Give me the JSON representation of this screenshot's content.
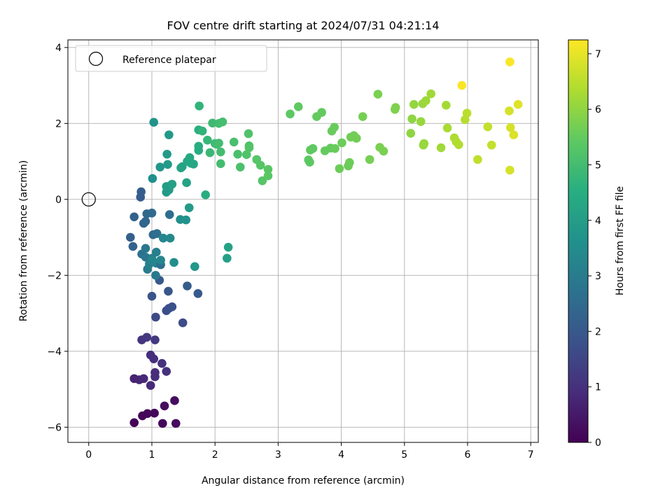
{
  "chart_data": {
    "type": "scatter",
    "title": "FOV centre drift starting at 2024/07/31 04:21:14",
    "xlabel": "Angular distance from reference (arcmin)",
    "ylabel": "Rotation from reference (arcmin)",
    "xlim": [
      -0.33,
      7.12
    ],
    "ylim": [
      -6.4,
      4.2
    ],
    "xticks": [
      0,
      1,
      2,
      3,
      4,
      5,
      6,
      7
    ],
    "yticks": [
      -6,
      -4,
      -2,
      0,
      2,
      4
    ],
    "grid": true,
    "legend": {
      "placement": "top-left",
      "entries": [
        "Reference platepar"
      ]
    },
    "reference_point": {
      "x": 0,
      "y": 0
    },
    "colorbar": {
      "label": "Hours from first FF file",
      "range": [
        0,
        7.25
      ],
      "ticks": [
        0,
        1,
        2,
        3,
        4,
        5,
        6,
        7
      ],
      "colormap": "viridis"
    },
    "points": [
      {
        "x": 0.72,
        "y": -5.88,
        "c": 0.05
      },
      {
        "x": 0.85,
        "y": -5.7,
        "c": 0.1
      },
      {
        "x": 0.93,
        "y": -5.64,
        "c": 0.1
      },
      {
        "x": 1.04,
        "y": -5.63,
        "c": 0.15
      },
      {
        "x": 1.17,
        "y": -5.9,
        "c": 0.15
      },
      {
        "x": 1.38,
        "y": -5.9,
        "c": 0.2
      },
      {
        "x": 1.2,
        "y": -5.44,
        "c": 0.2
      },
      {
        "x": 1.36,
        "y": -5.3,
        "c": 0.25
      },
      {
        "x": 0.72,
        "y": -4.72,
        "c": 0.7
      },
      {
        "x": 0.8,
        "y": -4.75,
        "c": 0.75
      },
      {
        "x": 0.87,
        "y": -4.72,
        "c": 0.8
      },
      {
        "x": 0.98,
        "y": -4.9,
        "c": 0.85
      },
      {
        "x": 1.05,
        "y": -4.67,
        "c": 0.9
      },
      {
        "x": 1.05,
        "y": -4.56,
        "c": 0.9
      },
      {
        "x": 0.98,
        "y": -4.1,
        "c": 0.95
      },
      {
        "x": 1.03,
        "y": -4.2,
        "c": 0.95
      },
      {
        "x": 1.16,
        "y": -4.32,
        "c": 1.0
      },
      {
        "x": 1.23,
        "y": -4.53,
        "c": 1.0
      },
      {
        "x": 0.84,
        "y": -3.7,
        "c": 1.1
      },
      {
        "x": 0.92,
        "y": -3.63,
        "c": 1.15
      },
      {
        "x": 1.05,
        "y": -3.7,
        "c": 1.2
      },
      {
        "x": 1.06,
        "y": -3.1,
        "c": 1.6
      },
      {
        "x": 1.49,
        "y": -3.25,
        "c": 1.7
      },
      {
        "x": 1.0,
        "y": -2.55,
        "c": 1.9
      },
      {
        "x": 1.23,
        "y": -2.93,
        "c": 1.7
      },
      {
        "x": 1.27,
        "y": -2.87,
        "c": 1.75
      },
      {
        "x": 1.32,
        "y": -2.83,
        "c": 1.8
      },
      {
        "x": 1.26,
        "y": -2.42,
        "c": 1.95
      },
      {
        "x": 1.56,
        "y": -2.28,
        "c": 2.1
      },
      {
        "x": 1.73,
        "y": -2.48,
        "c": 2.05
      },
      {
        "x": 1.12,
        "y": -2.13,
        "c": 2.0
      },
      {
        "x": 1.06,
        "y": -2.0,
        "c": 2.9
      },
      {
        "x": 0.93,
        "y": -1.84,
        "c": 3.0
      },
      {
        "x": 0.96,
        "y": -1.7,
        "c": 3.1
      },
      {
        "x": 1.0,
        "y": -1.55,
        "c": 3.2
      },
      {
        "x": 1.07,
        "y": -1.68,
        "c": 3.25
      },
      {
        "x": 1.14,
        "y": -1.72,
        "c": 2.6
      },
      {
        "x": 0.84,
        "y": -1.44,
        "c": 2.7
      },
      {
        "x": 0.9,
        "y": -1.52,
        "c": 2.8
      },
      {
        "x": 0.9,
        "y": -1.29,
        "c": 2.9
      },
      {
        "x": 1.07,
        "y": -1.39,
        "c": 3.1
      },
      {
        "x": 1.14,
        "y": -1.6,
        "c": 3.3
      },
      {
        "x": 1.35,
        "y": -1.66,
        "c": 3.5
      },
      {
        "x": 1.0,
        "y": -1.6,
        "c": 3.3
      },
      {
        "x": 0.66,
        "y": -1.0,
        "c": 2.2
      },
      {
        "x": 0.7,
        "y": -1.24,
        "c": 2.3
      },
      {
        "x": 1.02,
        "y": -0.93,
        "c": 2.5
      },
      {
        "x": 1.08,
        "y": -0.9,
        "c": 2.6
      },
      {
        "x": 1.18,
        "y": -1.02,
        "c": 3.3
      },
      {
        "x": 1.29,
        "y": -1.02,
        "c": 3.4
      },
      {
        "x": 1.68,
        "y": -1.77,
        "c": 3.8
      },
      {
        "x": 2.19,
        "y": -1.55,
        "c": 4.1
      },
      {
        "x": 2.21,
        "y": -1.26,
        "c": 4.15
      },
      {
        "x": 0.72,
        "y": -0.46,
        "c": 2.25
      },
      {
        "x": 0.87,
        "y": -0.63,
        "c": 2.35
      },
      {
        "x": 0.9,
        "y": -0.58,
        "c": 2.4
      },
      {
        "x": 0.92,
        "y": -0.38,
        "c": 2.45
      },
      {
        "x": 1.0,
        "y": -0.36,
        "c": 2.5
      },
      {
        "x": 1.28,
        "y": -0.4,
        "c": 2.6
      },
      {
        "x": 1.45,
        "y": -0.53,
        "c": 3.6
      },
      {
        "x": 1.54,
        "y": -0.54,
        "c": 3.7
      },
      {
        "x": 1.59,
        "y": -0.22,
        "c": 3.9
      },
      {
        "x": 0.82,
        "y": 0.06,
        "c": 2.1
      },
      {
        "x": 0.83,
        "y": 0.2,
        "c": 2.15
      },
      {
        "x": 1.23,
        "y": 0.19,
        "c": 3.9
      },
      {
        "x": 1.27,
        "y": 0.25,
        "c": 3.95
      },
      {
        "x": 1.23,
        "y": 0.34,
        "c": 4.0
      },
      {
        "x": 1.29,
        "y": 0.36,
        "c": 4.0
      },
      {
        "x": 1.32,
        "y": 0.4,
        "c": 4.1
      },
      {
        "x": 1.55,
        "y": 0.44,
        "c": 4.2
      },
      {
        "x": 1.85,
        "y": 0.12,
        "c": 4.5
      },
      {
        "x": 1.01,
        "y": 0.55,
        "c": 3.6
      },
      {
        "x": 1.13,
        "y": 0.85,
        "c": 3.8
      },
      {
        "x": 1.25,
        "y": 0.92,
        "c": 3.9
      },
      {
        "x": 1.46,
        "y": 0.83,
        "c": 4.2
      },
      {
        "x": 1.48,
        "y": 0.86,
        "c": 4.2
      },
      {
        "x": 1.56,
        "y": 1.0,
        "c": 4.3
      },
      {
        "x": 1.6,
        "y": 1.1,
        "c": 4.35
      },
      {
        "x": 1.66,
        "y": 0.93,
        "c": 4.3
      },
      {
        "x": 1.62,
        "y": 0.95,
        "c": 4.3
      },
      {
        "x": 1.24,
        "y": 1.19,
        "c": 3.9
      },
      {
        "x": 1.03,
        "y": 2.03,
        "c": 3.7
      },
      {
        "x": 1.27,
        "y": 1.7,
        "c": 3.9
      },
      {
        "x": 1.74,
        "y": 1.29,
        "c": 4.5
      },
      {
        "x": 1.74,
        "y": 1.4,
        "c": 4.5
      },
      {
        "x": 1.74,
        "y": 1.83,
        "c": 4.55
      },
      {
        "x": 1.75,
        "y": 2.46,
        "c": 4.7
      },
      {
        "x": 1.8,
        "y": 1.8,
        "c": 4.7
      },
      {
        "x": 1.88,
        "y": 1.56,
        "c": 4.8
      },
      {
        "x": 1.92,
        "y": 1.23,
        "c": 4.85
      },
      {
        "x": 1.96,
        "y": 2.01,
        "c": 4.9
      },
      {
        "x": 2.0,
        "y": 1.47,
        "c": 4.9
      },
      {
        "x": 2.03,
        "y": 1.45,
        "c": 4.95
      },
      {
        "x": 2.06,
        "y": 1.48,
        "c": 5.0
      },
      {
        "x": 2.06,
        "y": 2.0,
        "c": 5.0
      },
      {
        "x": 2.09,
        "y": 1.25,
        "c": 5.0
      },
      {
        "x": 2.09,
        "y": 0.94,
        "c": 5.0
      },
      {
        "x": 2.12,
        "y": 2.04,
        "c": 5.05
      },
      {
        "x": 2.3,
        "y": 1.51,
        "c": 5.1
      },
      {
        "x": 2.36,
        "y": 1.19,
        "c": 5.1
      },
      {
        "x": 2.4,
        "y": 0.85,
        "c": 5.15
      },
      {
        "x": 2.5,
        "y": 1.18,
        "c": 5.2
      },
      {
        "x": 2.53,
        "y": 1.73,
        "c": 5.2
      },
      {
        "x": 2.54,
        "y": 1.41,
        "c": 5.2
      },
      {
        "x": 2.54,
        "y": 1.36,
        "c": 5.25
      },
      {
        "x": 2.66,
        "y": 1.05,
        "c": 5.3
      },
      {
        "x": 2.72,
        "y": 0.9,
        "c": 5.3
      },
      {
        "x": 2.75,
        "y": 0.49,
        "c": 5.3
      },
      {
        "x": 2.84,
        "y": 0.79,
        "c": 5.35
      },
      {
        "x": 2.84,
        "y": 0.62,
        "c": 5.35
      },
      {
        "x": 3.19,
        "y": 2.25,
        "c": 5.4
      },
      {
        "x": 3.32,
        "y": 2.44,
        "c": 5.45
      },
      {
        "x": 3.48,
        "y": 1.04,
        "c": 5.4
      },
      {
        "x": 3.5,
        "y": 0.98,
        "c": 5.4
      },
      {
        "x": 3.51,
        "y": 1.3,
        "c": 5.45
      },
      {
        "x": 3.55,
        "y": 1.34,
        "c": 5.45
      },
      {
        "x": 3.61,
        "y": 2.18,
        "c": 5.5
      },
      {
        "x": 3.69,
        "y": 2.29,
        "c": 5.5
      },
      {
        "x": 3.74,
        "y": 1.28,
        "c": 5.5
      },
      {
        "x": 3.83,
        "y": 1.35,
        "c": 5.5
      },
      {
        "x": 3.85,
        "y": 1.8,
        "c": 5.55
      },
      {
        "x": 3.89,
        "y": 1.9,
        "c": 5.55
      },
      {
        "x": 3.9,
        "y": 1.34,
        "c": 5.55
      },
      {
        "x": 3.97,
        "y": 0.81,
        "c": 5.6
      },
      {
        "x": 4.01,
        "y": 1.49,
        "c": 5.6
      },
      {
        "x": 4.11,
        "y": 0.88,
        "c": 5.6
      },
      {
        "x": 4.13,
        "y": 0.97,
        "c": 5.6
      },
      {
        "x": 4.15,
        "y": 1.64,
        "c": 5.65
      },
      {
        "x": 4.2,
        "y": 1.68,
        "c": 5.65
      },
      {
        "x": 4.24,
        "y": 1.61,
        "c": 5.65
      },
      {
        "x": 4.34,
        "y": 2.18,
        "c": 5.7
      },
      {
        "x": 4.45,
        "y": 1.05,
        "c": 5.7
      },
      {
        "x": 4.58,
        "y": 2.77,
        "c": 5.75
      },
      {
        "x": 4.61,
        "y": 1.37,
        "c": 5.75
      },
      {
        "x": 4.67,
        "y": 1.27,
        "c": 5.75
      },
      {
        "x": 4.85,
        "y": 2.37,
        "c": 5.8
      },
      {
        "x": 4.86,
        "y": 2.42,
        "c": 5.8
      },
      {
        "x": 5.1,
        "y": 1.74,
        "c": 6.0
      },
      {
        "x": 5.12,
        "y": 2.12,
        "c": 6.0
      },
      {
        "x": 5.15,
        "y": 2.5,
        "c": 6.05
      },
      {
        "x": 5.26,
        "y": 2.05,
        "c": 6.1
      },
      {
        "x": 5.29,
        "y": 2.52,
        "c": 6.1
      },
      {
        "x": 5.3,
        "y": 1.43,
        "c": 6.1
      },
      {
        "x": 5.31,
        "y": 1.47,
        "c": 6.1
      },
      {
        "x": 5.34,
        "y": 2.6,
        "c": 6.15
      },
      {
        "x": 5.42,
        "y": 2.78,
        "c": 6.2
      },
      {
        "x": 5.58,
        "y": 1.36,
        "c": 6.2
      },
      {
        "x": 5.66,
        "y": 2.48,
        "c": 6.25
      },
      {
        "x": 5.68,
        "y": 1.88,
        "c": 6.3
      },
      {
        "x": 5.79,
        "y": 1.62,
        "c": 6.35
      },
      {
        "x": 5.82,
        "y": 1.52,
        "c": 6.35
      },
      {
        "x": 5.86,
        "y": 1.44,
        "c": 6.4
      },
      {
        "x": 5.91,
        "y": 3.0,
        "c": 7.2
      },
      {
        "x": 5.96,
        "y": 2.1,
        "c": 6.45
      },
      {
        "x": 5.99,
        "y": 2.27,
        "c": 6.5
      },
      {
        "x": 6.16,
        "y": 1.05,
        "c": 6.55
      },
      {
        "x": 6.32,
        "y": 1.91,
        "c": 6.6
      },
      {
        "x": 6.38,
        "y": 1.43,
        "c": 6.6
      },
      {
        "x": 6.66,
        "y": 2.33,
        "c": 6.8
      },
      {
        "x": 6.67,
        "y": 3.62,
        "c": 7.2
      },
      {
        "x": 6.67,
        "y": 0.77,
        "c": 6.8
      },
      {
        "x": 6.68,
        "y": 1.89,
        "c": 6.8
      },
      {
        "x": 6.73,
        "y": 1.7,
        "c": 6.85
      },
      {
        "x": 6.8,
        "y": 2.5,
        "c": 6.9
      }
    ]
  }
}
